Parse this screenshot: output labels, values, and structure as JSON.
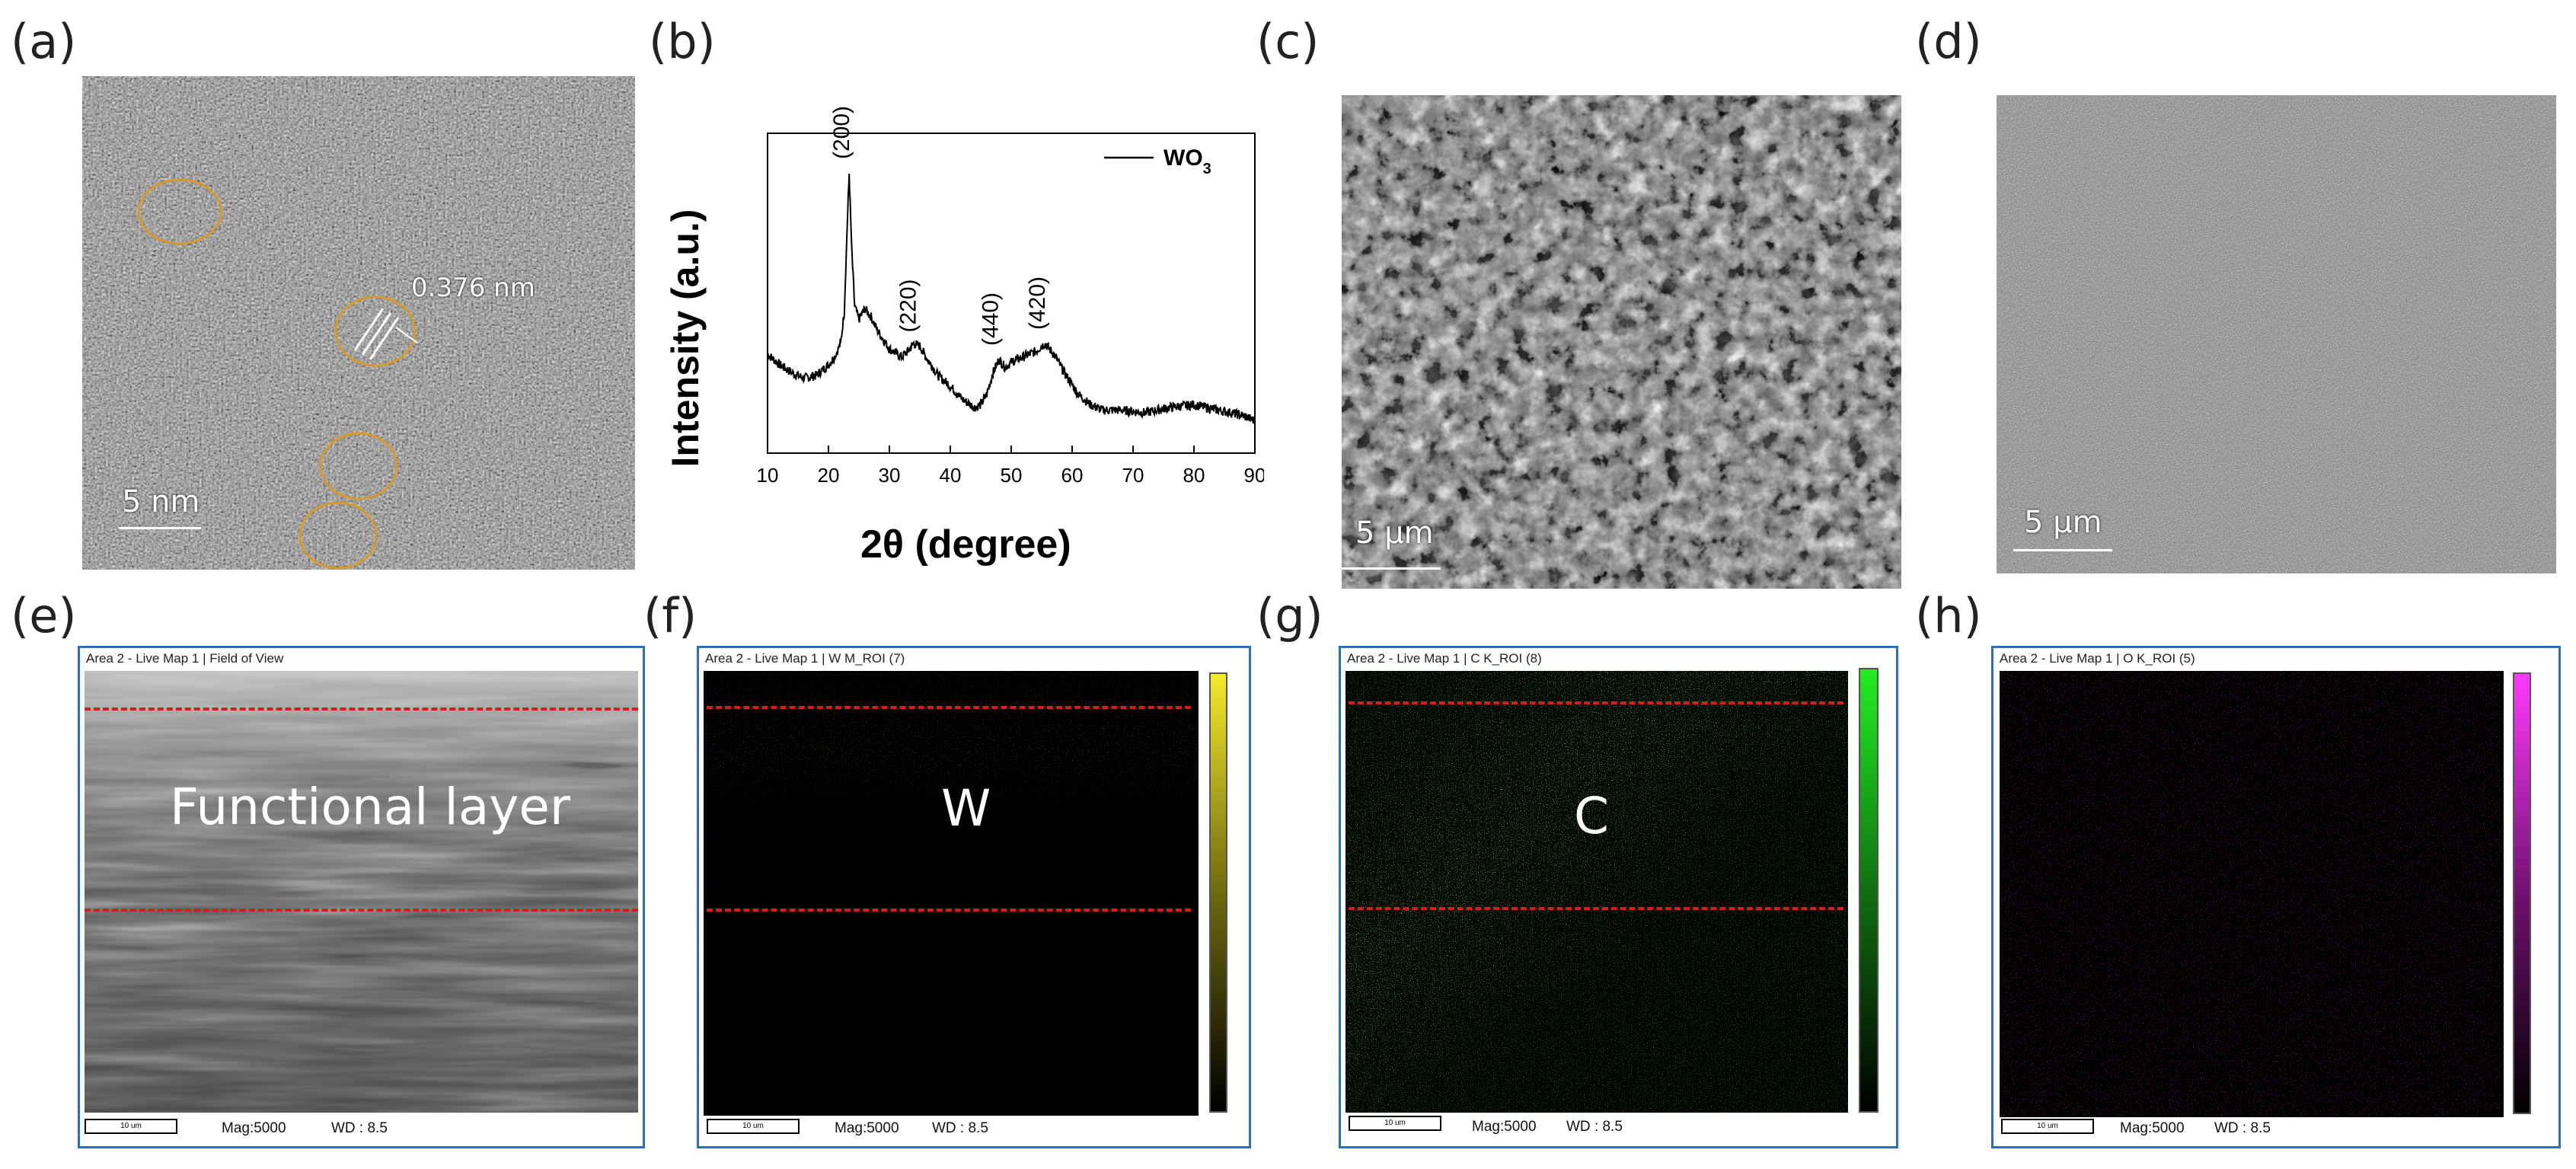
{
  "panels": {
    "a": {
      "label": "(a)",
      "lattice": "0.376 nm",
      "scale": "5 nm"
    },
    "b": {
      "label": "(b)"
    },
    "c": {
      "label": "(c)",
      "scale": "5 μm"
    },
    "d": {
      "label": "(d)",
      "scale": "5 μm"
    },
    "e": {
      "label": "(e)",
      "header": "Area 2 - Live Map 1 | Field of View",
      "overlay": "Functional layer",
      "mag": "Mag:5000",
      "wd": "WD : 8.5",
      "bar": "10 um"
    },
    "f": {
      "label": "(f)",
      "header": "Area 2 - Live Map 1 | W M_ROI (7)",
      "overlay": "W",
      "mag": "Mag:5000",
      "wd": "WD : 8.5",
      "bar": "10 um",
      "color": "#d8d020"
    },
    "g": {
      "label": "(g)",
      "header": "Area 2 - Live Map 1 | C K_ROI (8)",
      "overlay": "C",
      "mag": "Mag:5000",
      "wd": "WD : 8.5",
      "bar": "10 um",
      "color": "#28d028"
    },
    "h": {
      "label": "(h)",
      "header": "Area 2 - Live Map 1 | O K_ROI (5)",
      "mag": "Mag:5000",
      "wd": "WD : 8.5",
      "bar": "10 um",
      "color": "#e020e0"
    }
  },
  "chart_data": {
    "type": "line",
    "xlabel": "2θ (degree)",
    "ylabel": "Intensity (a.u.)",
    "xlim": [
      10,
      90
    ],
    "xticks": [
      10,
      20,
      30,
      40,
      50,
      60,
      70,
      80,
      90
    ],
    "yticks_shown": false,
    "legend": {
      "position": "top-right",
      "entries": [
        "WO3"
      ]
    },
    "series": [
      {
        "name": "WO3",
        "x": [
          10,
          12,
          14,
          16,
          18,
          20,
          21,
          22,
          22.6,
          23.0,
          23.4,
          23.8,
          24.3,
          25,
          26,
          27,
          28,
          30,
          32,
          33,
          34,
          35,
          36,
          38,
          40,
          42,
          44,
          45,
          46,
          47,
          48,
          49,
          50,
          52,
          54,
          55.5,
          57,
          59,
          61,
          63,
          65,
          68,
          72,
          76,
          80,
          84,
          88,
          90
        ],
        "y": [
          0.32,
          0.28,
          0.25,
          0.23,
          0.24,
          0.28,
          0.31,
          0.36,
          0.48,
          0.75,
          1.0,
          0.72,
          0.5,
          0.45,
          0.49,
          0.46,
          0.41,
          0.34,
          0.31,
          0.33,
          0.36,
          0.35,
          0.31,
          0.24,
          0.2,
          0.15,
          0.12,
          0.13,
          0.17,
          0.25,
          0.3,
          0.27,
          0.29,
          0.31,
          0.33,
          0.36,
          0.32,
          0.24,
          0.17,
          0.13,
          0.11,
          0.11,
          0.1,
          0.12,
          0.13,
          0.11,
          0.09,
          0.07
        ]
      }
    ],
    "annotations": [
      {
        "text": "(200)",
        "x": 23.4
      },
      {
        "text": "(220)",
        "x": 34.3
      },
      {
        "text": "(440)",
        "x": 47.8
      },
      {
        "text": "(420)",
        "x": 55.5
      }
    ]
  }
}
